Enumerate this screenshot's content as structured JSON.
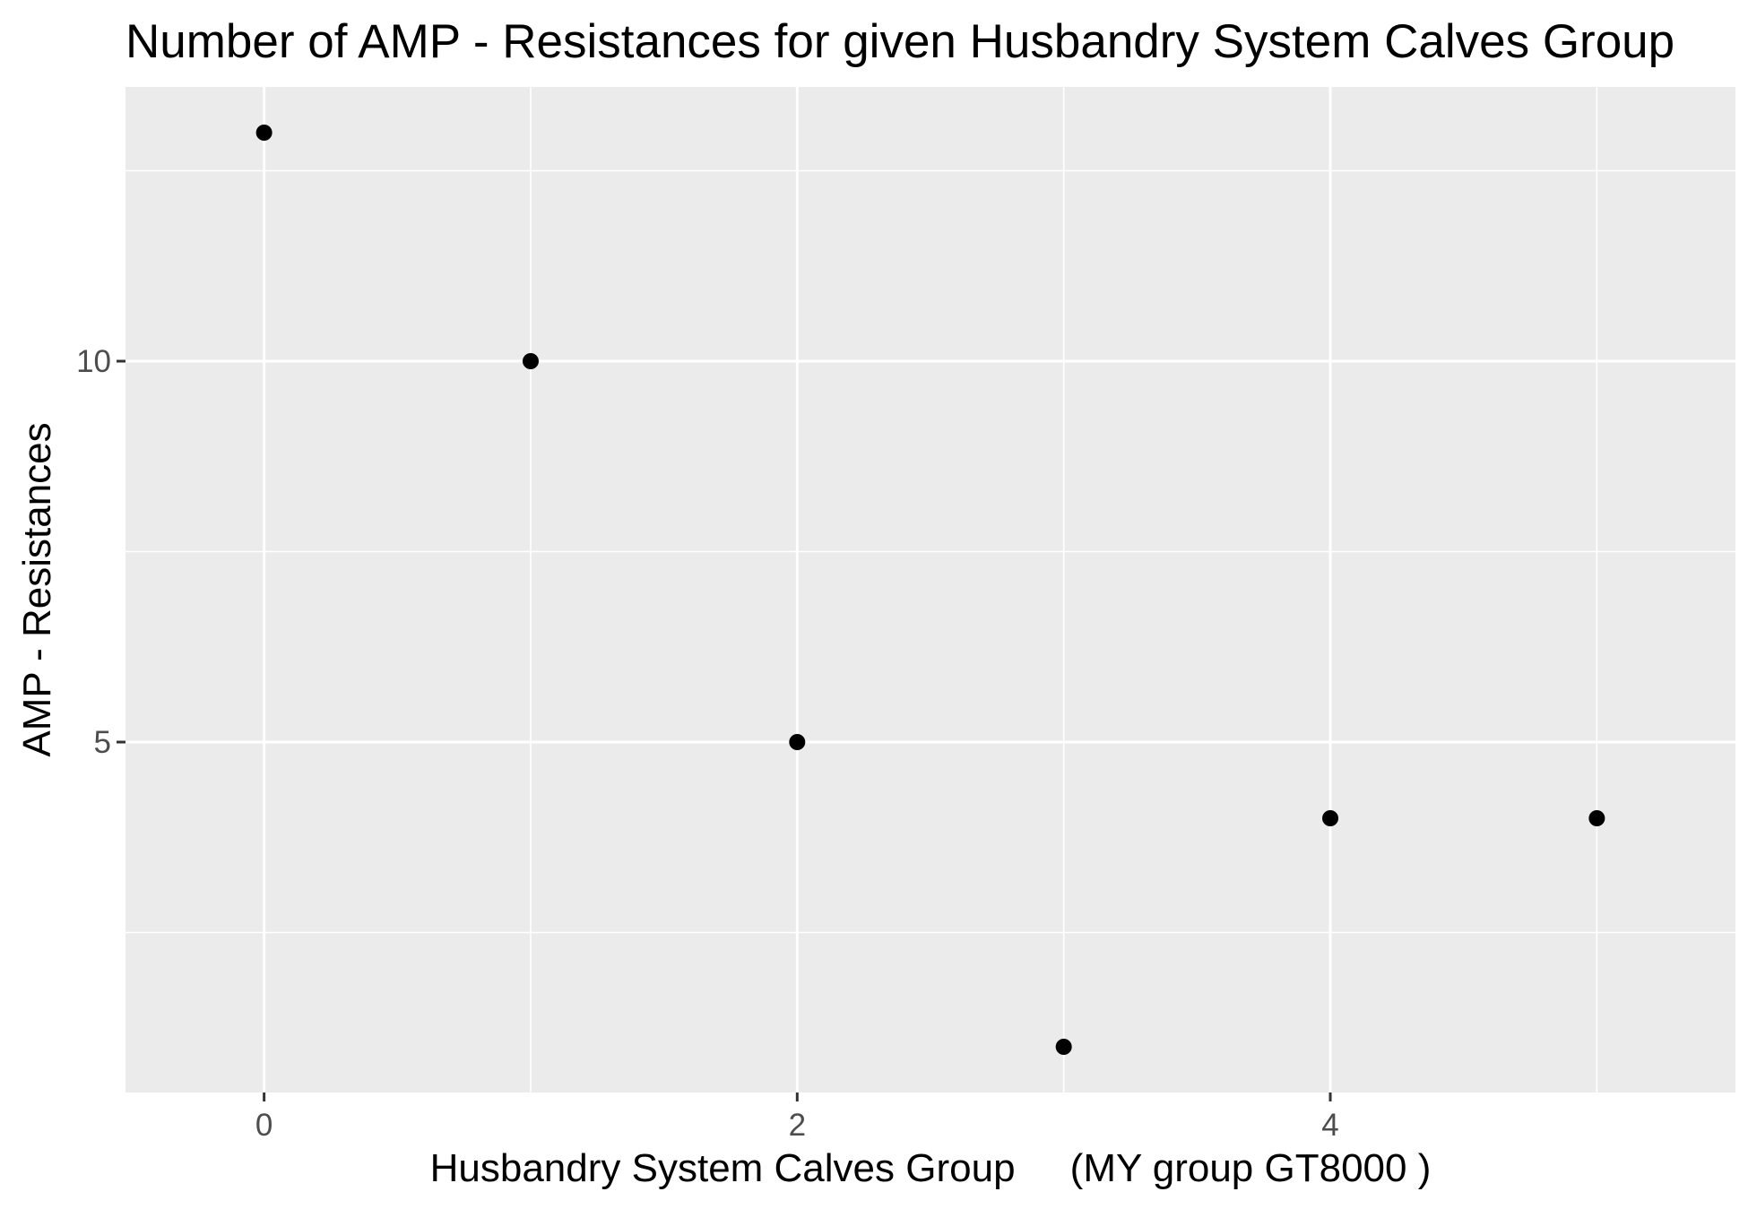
{
  "chart_data": {
    "type": "scatter",
    "title": "Number of AMP - Resistances for given Husbandry System Calves Group",
    "xlabel": "Husbandry System Calves Group     (MY group GT8000 )",
    "ylabel": "AMP - Resistances",
    "xlim": [
      -0.52,
      5.52
    ],
    "ylim": [
      0.4,
      13.6
    ],
    "x_ticks": [
      0,
      2,
      4
    ],
    "y_ticks": [
      5,
      10
    ],
    "x_minor_gridlines": [
      1,
      3,
      5
    ],
    "y_minor_gridlines": [
      2.5,
      7.5,
      12.5
    ],
    "grid": true,
    "panel_background": "#EBEBEB",
    "gridline_color": "#FFFFFF",
    "point_color": "#000000",
    "points": [
      {
        "x": 0,
        "y": 13
      },
      {
        "x": 1,
        "y": 10
      },
      {
        "x": 2,
        "y": 5
      },
      {
        "x": 3,
        "y": 1
      },
      {
        "x": 4,
        "y": 4
      },
      {
        "x": 5,
        "y": 4
      }
    ]
  }
}
